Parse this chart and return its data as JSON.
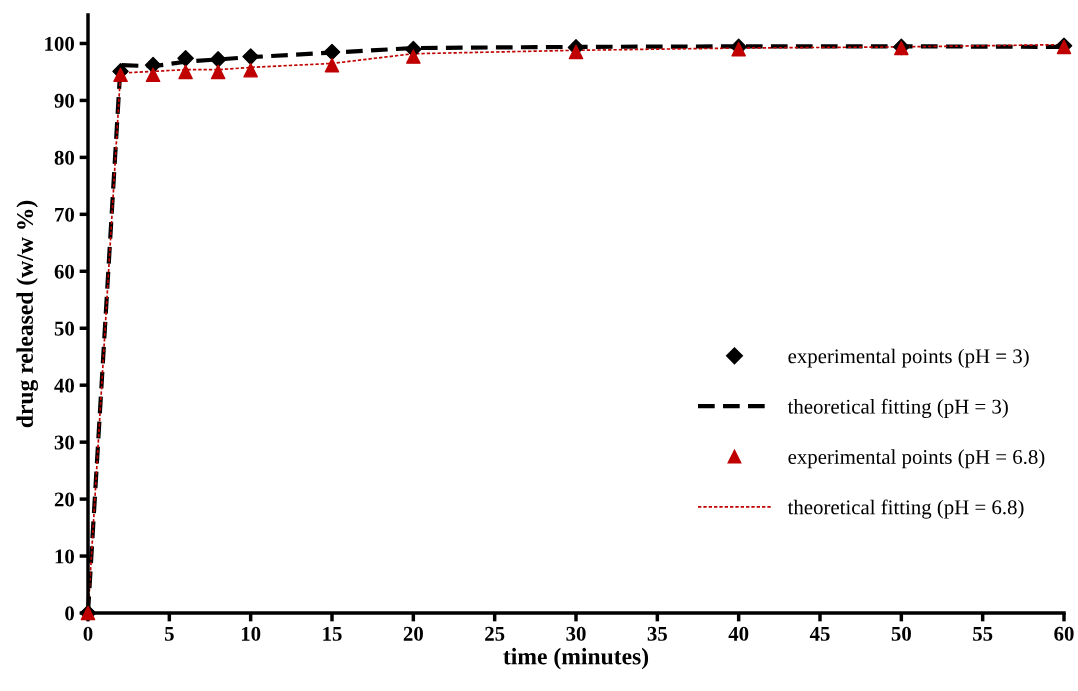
{
  "chart_data": {
    "type": "line",
    "xlabel": "time (minutes)",
    "ylabel": "drug released (w/w %)",
    "xlim": [
      0,
      60
    ],
    "xticks": [
      0,
      5,
      10,
      15,
      20,
      25,
      30,
      35,
      40,
      45,
      50,
      55,
      60
    ],
    "ylim": [
      0,
      105
    ],
    "yticks": [
      0,
      10,
      20,
      30,
      40,
      50,
      60,
      70,
      80,
      90,
      100
    ],
    "grid": false,
    "legend": "right",
    "series": [
      {
        "name": "experimental points (pH = 3)",
        "type": "scatter",
        "marker": "diamond",
        "color": "#000000",
        "x": [
          0,
          2,
          4,
          6,
          8,
          10,
          15,
          20,
          30,
          40,
          50,
          60
        ],
        "values": [
          0,
          95.1,
          96.2,
          97.4,
          97.2,
          97.7,
          98.5,
          99.0,
          99.3,
          99.4,
          99.4,
          99.6
        ]
      },
      {
        "name": "theoretical fitting (pH = 3)",
        "line_style": "dashed",
        "marker": "none",
        "color": "#000000",
        "x": [
          0,
          2,
          4,
          6,
          8,
          10,
          15,
          20,
          30,
          40,
          50,
          60
        ],
        "values": [
          0,
          96.2,
          96.0,
          96.8,
          97.2,
          97.6,
          98.4,
          99.2,
          99.4,
          99.5,
          99.5,
          99.4
        ]
      },
      {
        "name": "experimental points (pH = 6.8)",
        "type": "scatter",
        "marker": "triangle",
        "color": "#c00000",
        "x": [
          0,
          2,
          4,
          6,
          8,
          10,
          15,
          20,
          30,
          40,
          50,
          60
        ],
        "values": [
          0,
          94.5,
          94.5,
          95.0,
          95.0,
          95.3,
          96.2,
          97.7,
          98.5,
          99.0,
          99.2,
          99.4
        ]
      },
      {
        "name": "theoretical fitting (pH = 6.8)",
        "line_style": "dotted",
        "marker": "none",
        "color": "#c00000",
        "x": [
          0,
          2,
          4,
          6,
          8,
          10,
          15,
          20,
          30,
          40,
          50,
          60
        ],
        "values": [
          0,
          94.8,
          95.1,
          95.4,
          95.4,
          95.8,
          96.5,
          98.2,
          98.8,
          99.2,
          99.4,
          99.8
        ]
      }
    ]
  }
}
